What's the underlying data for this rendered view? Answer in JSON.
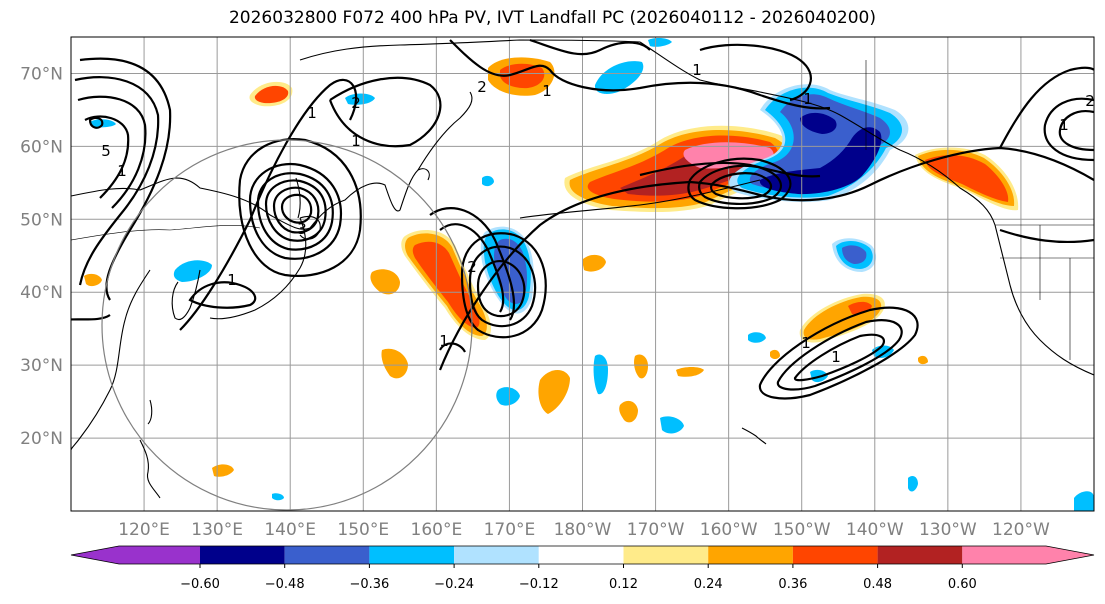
{
  "title": "2026032800 F072 400 hPa PV, IVT Landfall PC (2026040112 - 2026040200)",
  "map": {
    "lat_labels": [
      "70°N",
      "60°N",
      "50°N",
      "40°N",
      "30°N",
      "20°N"
    ],
    "lat_values": [
      70,
      60,
      50,
      40,
      30,
      20
    ],
    "lon_labels": [
      "120°E",
      "130°E",
      "140°E",
      "150°E",
      "160°E",
      "170°E",
      "180°W",
      "170°W",
      "160°W",
      "150°W",
      "140°W",
      "130°W",
      "120°W"
    ],
    "lon_values": [
      120,
      130,
      140,
      150,
      160,
      170,
      180,
      190,
      200,
      210,
      220,
      230,
      240
    ],
    "extent": {
      "lon_min": 110,
      "lon_max": 250,
      "lat_min": 10,
      "lat_max": 75
    },
    "contour_labels": [
      "5",
      "1",
      "3",
      "1",
      "2",
      "1",
      "1",
      "2",
      "1",
      "1",
      "1",
      "1",
      "2",
      "1",
      "1",
      "1",
      "2"
    ]
  },
  "colorbar": {
    "tick_labels": [
      "−0.60",
      "−0.48",
      "−0.36",
      "−0.24",
      "−0.12",
      "0.12",
      "0.24",
      "0.36",
      "0.48",
      "0.60"
    ],
    "tick_values": [
      -0.6,
      -0.48,
      -0.36,
      -0.24,
      -0.12,
      0.12,
      0.24,
      0.36,
      0.48,
      0.6
    ],
    "colors": [
      "#9932cc",
      "#00008b",
      "#3a5fcd",
      "#00bfff",
      "#b0e2ff",
      "#ffffff",
      "#ffeb8a",
      "#ffa500",
      "#ff4500",
      "#b22222",
      "#ff82ab"
    ],
    "extend": "both"
  },
  "colors": {
    "pink": "#ff82ab",
    "darkred": "#b22222",
    "orangered": "#ff4500",
    "orange": "#ffa500",
    "yellow": "#ffeb8a",
    "lightblue": "#b0e2ff",
    "cyan": "#00bfff",
    "blue": "#3a5fcd",
    "navy": "#00008b",
    "purple": "#9932cc"
  }
}
